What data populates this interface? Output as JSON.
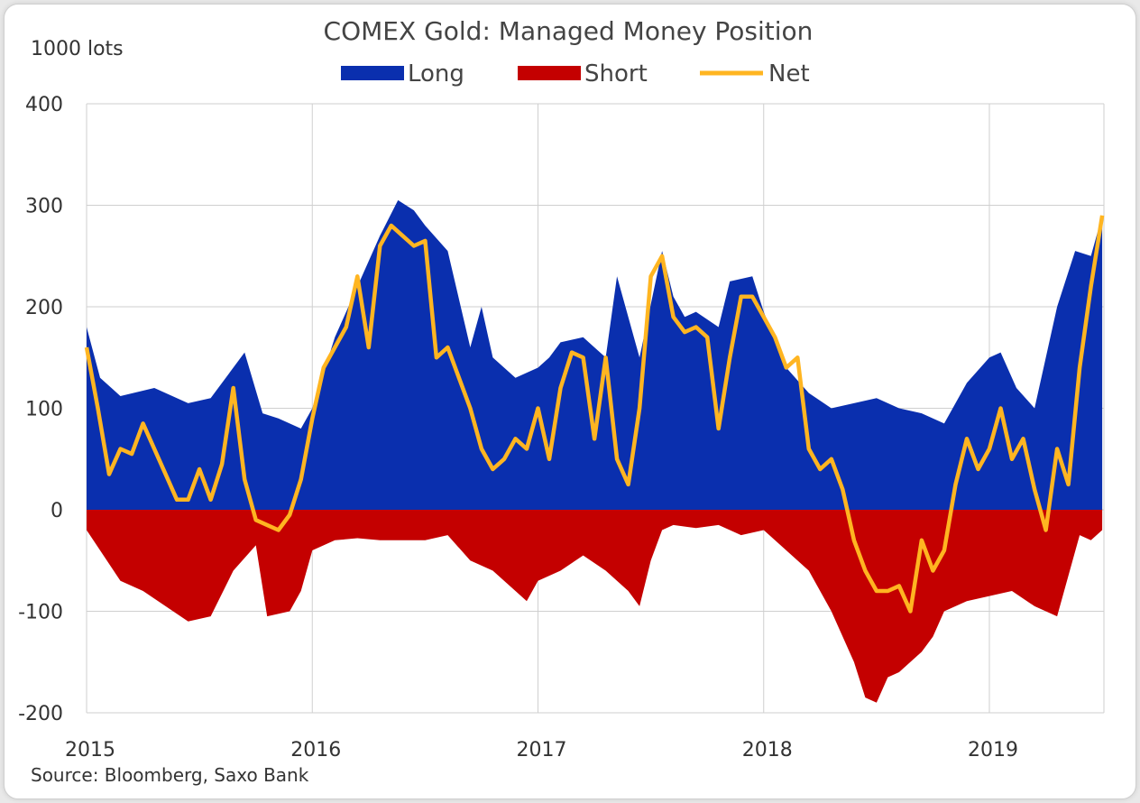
{
  "chart_data": {
    "type": "area",
    "title": "COMEX Gold: Managed Money Position",
    "ylabel": "1000 lots",
    "source": "Source: Bloomberg, Saxo Bank",
    "ylim": [
      -200,
      400
    ],
    "yticks": [
      400,
      300,
      200,
      100,
      0,
      -100,
      -200
    ],
    "ytick_labels": [
      "400",
      "300",
      "200",
      "100",
      "0",
      "-100",
      "-200"
    ],
    "xlim": [
      2015,
      2019.5
    ],
    "xticks": [
      2015,
      2016,
      2017,
      2018,
      2019
    ],
    "xtick_labels": [
      "2015",
      "2016",
      "2017",
      "2018",
      "2019"
    ],
    "grid": true,
    "legend_position": "top",
    "colors": {
      "long": "#0a2fae",
      "short": "#c40000",
      "net": "#ffb521"
    },
    "series": [
      {
        "name": "Long",
        "style": "area",
        "x": [
          2015.0,
          2015.06,
          2015.15,
          2015.3,
          2015.45,
          2015.55,
          2015.7,
          2015.78,
          2015.85,
          2015.95,
          2016.0,
          2016.1,
          2016.2,
          2016.3,
          2016.38,
          2016.45,
          2016.5,
          2016.6,
          2016.7,
          2016.75,
          2016.8,
          2016.9,
          2017.0,
          2017.05,
          2017.1,
          2017.2,
          2017.3,
          2017.35,
          2017.45,
          2017.55,
          2017.6,
          2017.65,
          2017.7,
          2017.8,
          2017.85,
          2017.95,
          2018.0,
          2018.1,
          2018.2,
          2018.3,
          2018.4,
          2018.5,
          2018.6,
          2018.7,
          2018.8,
          2018.9,
          2019.0,
          2019.05,
          2019.12,
          2019.2,
          2019.3,
          2019.38,
          2019.45,
          2019.5
        ],
        "values": [
          180,
          130,
          112,
          120,
          105,
          110,
          155,
          95,
          90,
          80,
          100,
          170,
          220,
          270,
          305,
          295,
          280,
          255,
          160,
          200,
          150,
          130,
          140,
          150,
          165,
          170,
          150,
          230,
          150,
          255,
          210,
          190,
          195,
          180,
          225,
          230,
          195,
          140,
          115,
          100,
          105,
          110,
          100,
          95,
          85,
          125,
          150,
          155,
          120,
          100,
          200,
          255,
          250,
          290
        ]
      },
      {
        "name": "Short",
        "style": "area",
        "x": [
          2015.0,
          2015.06,
          2015.15,
          2015.25,
          2015.35,
          2015.45,
          2015.55,
          2015.65,
          2015.75,
          2015.8,
          2015.9,
          2015.95,
          2016.0,
          2016.1,
          2016.2,
          2016.3,
          2016.4,
          2016.5,
          2016.6,
          2016.7,
          2016.8,
          2016.9,
          2016.95,
          2017.0,
          2017.1,
          2017.2,
          2017.3,
          2017.4,
          2017.45,
          2017.5,
          2017.55,
          2017.6,
          2017.7,
          2017.8,
          2017.9,
          2018.0,
          2018.1,
          2018.2,
          2018.3,
          2018.4,
          2018.45,
          2018.5,
          2018.55,
          2018.6,
          2018.7,
          2018.75,
          2018.8,
          2018.9,
          2019.0,
          2019.1,
          2019.2,
          2019.3,
          2019.4,
          2019.45,
          2019.5
        ],
        "values": [
          -20,
          -40,
          -70,
          -80,
          -95,
          -110,
          -105,
          -60,
          -35,
          -105,
          -100,
          -80,
          -40,
          -30,
          -28,
          -30,
          -30,
          -30,
          -25,
          -50,
          -60,
          -80,
          -90,
          -70,
          -60,
          -45,
          -60,
          -80,
          -95,
          -50,
          -20,
          -15,
          -18,
          -15,
          -25,
          -20,
          -40,
          -60,
          -100,
          -150,
          -185,
          -190,
          -165,
          -160,
          -140,
          -125,
          -100,
          -90,
          -85,
          -80,
          -95,
          -105,
          -25,
          -30,
          -20
        ]
      },
      {
        "name": "Net",
        "style": "line",
        "x": [
          2015.0,
          2015.05,
          2015.1,
          2015.15,
          2015.2,
          2015.25,
          2015.3,
          2015.35,
          2015.4,
          2015.45,
          2015.5,
          2015.55,
          2015.6,
          2015.65,
          2015.7,
          2015.75,
          2015.8,
          2015.85,
          2015.9,
          2015.95,
          2016.0,
          2016.05,
          2016.1,
          2016.15,
          2016.2,
          2016.25,
          2016.3,
          2016.35,
          2016.4,
          2016.45,
          2016.5,
          2016.55,
          2016.6,
          2016.65,
          2016.7,
          2016.75,
          2016.8,
          2016.85,
          2016.9,
          2016.95,
          2017.0,
          2017.05,
          2017.1,
          2017.15,
          2017.2,
          2017.25,
          2017.3,
          2017.35,
          2017.4,
          2017.45,
          2017.5,
          2017.55,
          2017.6,
          2017.65,
          2017.7,
          2017.75,
          2017.8,
          2017.85,
          2017.9,
          2017.95,
          2018.0,
          2018.05,
          2018.1,
          2018.15,
          2018.2,
          2018.25,
          2018.3,
          2018.35,
          2018.4,
          2018.45,
          2018.5,
          2018.55,
          2018.6,
          2018.65,
          2018.7,
          2018.75,
          2018.8,
          2018.85,
          2018.9,
          2018.95,
          2019.0,
          2019.05,
          2019.1,
          2019.15,
          2019.2,
          2019.25,
          2019.3,
          2019.35,
          2019.4,
          2019.45,
          2019.5
        ],
        "values": [
          160,
          100,
          35,
          60,
          55,
          85,
          60,
          35,
          10,
          10,
          40,
          10,
          45,
          120,
          30,
          -10,
          -15,
          -20,
          -5,
          30,
          90,
          140,
          160,
          180,
          230,
          160,
          260,
          280,
          270,
          260,
          265,
          150,
          160,
          130,
          100,
          60,
          40,
          50,
          70,
          60,
          100,
          50,
          120,
          155,
          150,
          70,
          150,
          50,
          25,
          100,
          230,
          250,
          190,
          175,
          180,
          170,
          80,
          150,
          210,
          210,
          190,
          170,
          140,
          150,
          60,
          40,
          50,
          20,
          -30,
          -60,
          -80,
          -80,
          -75,
          -100,
          -30,
          -60,
          -40,
          25,
          70,
          40,
          60,
          100,
          50,
          70,
          20,
          -20,
          60,
          25,
          140,
          220,
          290
        ]
      }
    ]
  }
}
